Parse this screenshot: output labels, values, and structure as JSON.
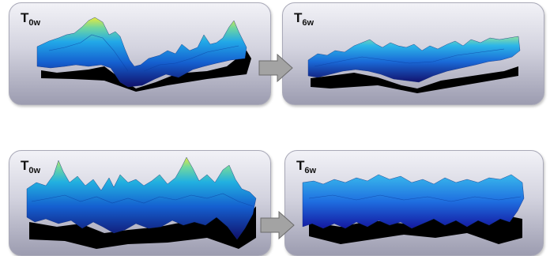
{
  "panels": [
    {
      "id": "top-left",
      "label_main": "T",
      "label_sub": "0w"
    },
    {
      "id": "top-right",
      "label_main": "T",
      "label_sub": "6w"
    },
    {
      "id": "bottom-left",
      "label_main": "T",
      "label_sub": "0w"
    },
    {
      "id": "bottom-right",
      "label_main": "T",
      "label_sub": "6w"
    }
  ],
  "arrows": [
    {
      "from": "top-left",
      "to": "top-right"
    },
    {
      "from": "bottom-left",
      "to": "bottom-right"
    }
  ],
  "colors": {
    "arrow_fill": "#a3a3a3",
    "arrow_stroke": "#6b6b6b",
    "surface_low": "#10106a",
    "surface_mid": "#1f7fe0",
    "surface_high": "#e8ea3c",
    "shadow": "#000000"
  }
}
